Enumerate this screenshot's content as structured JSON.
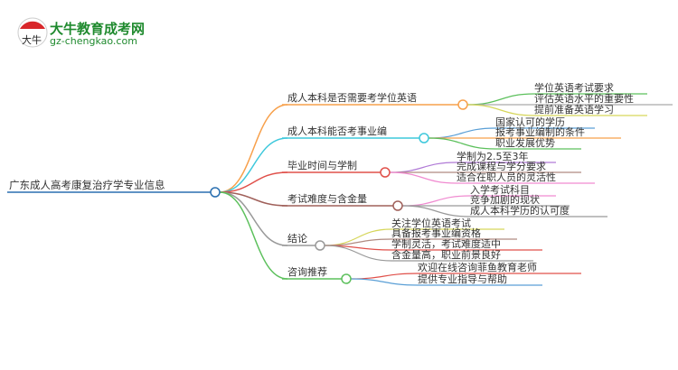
{
  "logo": {
    "title": "大牛教育成考网",
    "url": "gz-chengkao.com",
    "mark": "大牛",
    "color": "#1f8a2e"
  },
  "root": {
    "label": "广东成人高考康复治疗学专业信息",
    "color": "#2a6fb0"
  },
  "branches": [
    {
      "label": "成人本科是否需要考学位英语",
      "color": "#f7a04b",
      "children": [
        {
          "label": "学位英语考试要求",
          "color": "#5cc05c"
        },
        {
          "label": "评估英语水平的重要性",
          "color": "#aaaaaa"
        },
        {
          "label": "提前准备英语学习",
          "color": "#d6d65a"
        }
      ]
    },
    {
      "label": "成人本科能否考事业编",
      "color": "#3ec8dc",
      "children": [
        {
          "label": "国家认可的学历",
          "color": "#5a9fd6"
        },
        {
          "label": "报考事业编制的条件",
          "color": "#f7a04b"
        },
        {
          "label": "职业发展优势",
          "color": "#5cc05c"
        }
      ]
    },
    {
      "label": "毕业时间与学制",
      "color": "#e0504a",
      "children": [
        {
          "label": "学制为2.5至3年",
          "color": "#b07ad6"
        },
        {
          "label": "完成课程与学分要求",
          "color": "#b08a80"
        },
        {
          "label": "适合在职人员的灵活性",
          "color": "#f08ad0"
        }
      ]
    },
    {
      "label": "考试难度与含金量",
      "color": "#a0605a",
      "children": [
        {
          "label": "入学考试科目",
          "color": "#f08ad0"
        },
        {
          "label": "竞争加剧的现状",
          "color": "#999999"
        },
        {
          "label": "成人本科学历的认可度",
          "color": "#999999"
        }
      ]
    },
    {
      "label": "结论",
      "color": "#999999",
      "children": [
        {
          "label": "关注学位英语考试",
          "color": "#d6d65a"
        },
        {
          "label": "具备报考事业编资格",
          "color": "#b08a80"
        },
        {
          "label": "学制灵活，考试难度适中",
          "color": "#e0504a"
        },
        {
          "label": "含金量高，职业前景良好",
          "color": "#999999"
        }
      ]
    },
    {
      "label": "咨询推荐",
      "color": "#5cc05c",
      "children": [
        {
          "label": "欢迎在线咨询菲鱼教育老师",
          "color": "#e0504a"
        },
        {
          "label": "提供专业指导与帮助",
          "color": "#5a9fd6"
        }
      ]
    }
  ]
}
